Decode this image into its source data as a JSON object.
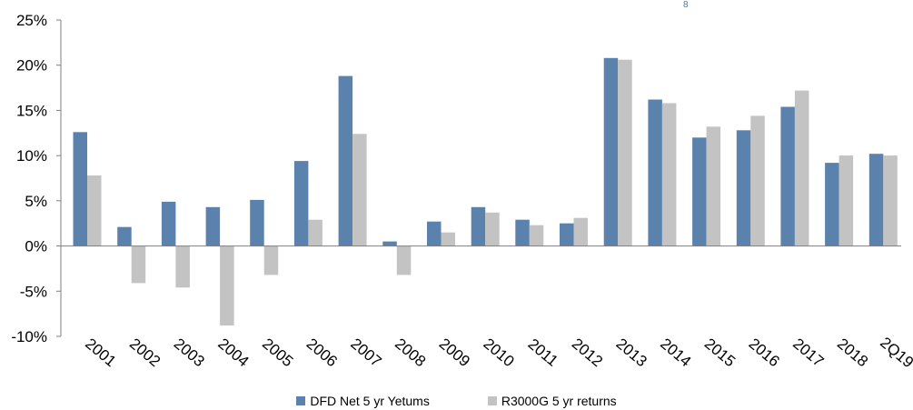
{
  "chart_data": {
    "type": "bar",
    "categories": [
      "2001",
      "2002",
      "2003",
      "2004",
      "2005",
      "2006",
      "2007",
      "2008",
      "2009",
      "2010",
      "2011",
      "2012",
      "2013",
      "2014",
      "2015",
      "2016",
      "2017",
      "2018",
      "2Q19"
    ],
    "series": [
      {
        "name": "DFD Net 5 yr Yetums",
        "color": "#5b82ad",
        "values": [
          12.6,
          2.1,
          4.9,
          4.3,
          5.1,
          9.4,
          18.8,
          0.5,
          2.7,
          4.3,
          2.9,
          2.5,
          20.8,
          16.2,
          12.0,
          12.8,
          15.4,
          9.2,
          10.2
        ]
      },
      {
        "name": "R3000G 5 yr returns",
        "color": "#c3c3c3",
        "values": [
          7.8,
          -4.1,
          -4.6,
          -8.8,
          -3.2,
          2.9,
          12.4,
          -3.2,
          1.5,
          3.7,
          2.3,
          3.1,
          20.6,
          15.8,
          13.2,
          14.4,
          17.2,
          10.0,
          10.0
        ]
      }
    ],
    "y_ticks": [
      "25%",
      "20%",
      "15%",
      "10%",
      "5%",
      "0%",
      "-5%",
      "-10%"
    ],
    "ylim": [
      -10,
      25
    ],
    "grid": false,
    "legend": "bottom",
    "top_mark": "8"
  }
}
